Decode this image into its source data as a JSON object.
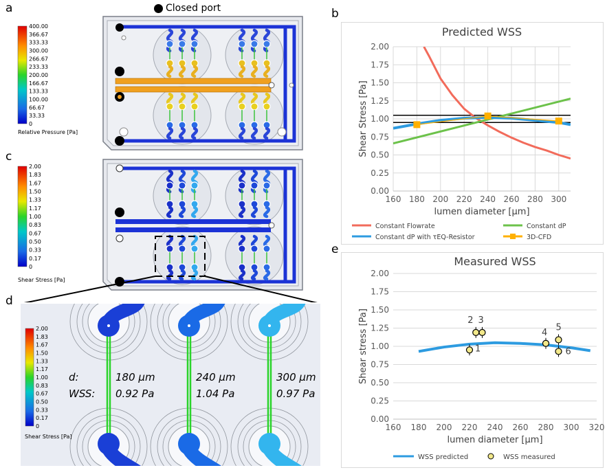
{
  "panels": {
    "a": {
      "letter": "a",
      "legend_label": "Closed port",
      "colorbar": {
        "title": "Relative Pressure [Pa]",
        "ticks": [
          "400.00",
          "366.67",
          "333.33",
          "300.00",
          "266.67",
          "233.33",
          "200.00",
          "166.67",
          "133.33",
          "100.00",
          "66.67",
          "33.33",
          "0"
        ]
      }
    },
    "c": {
      "letter": "c",
      "colorbar": {
        "title": "Shear Stress [Pa]",
        "ticks": [
          "2.00",
          "1.83",
          "1.67",
          "1.50",
          "1.33",
          "1.17",
          "1.00",
          "0.83",
          "0.67",
          "0.50",
          "0.33",
          "0.17",
          "0"
        ]
      }
    },
    "d": {
      "letter": "d",
      "colorbar": {
        "title": "Shear Stress [Pa]",
        "ticks": [
          "2.00",
          "1.83",
          "1.67",
          "1.50",
          "1.33",
          "1.17",
          "1.00",
          "0.83",
          "0.67",
          "0.50",
          "0.33",
          "0.17",
          "0"
        ]
      },
      "row_labels": [
        "d:",
        "WSS:"
      ],
      "columns": [
        {
          "d": "180 µm",
          "wss": "0.92 Pa",
          "color": "#1a3fd6"
        },
        {
          "d": "240 µm",
          "wss": "1.04 Pa",
          "color": "#1a6ae6"
        },
        {
          "d": "300 µm",
          "wss": "0.97 Pa",
          "color": "#33b5ee"
        }
      ]
    },
    "b": {
      "letter": "b"
    },
    "e": {
      "letter": "e"
    }
  },
  "colors": {
    "flowrate": "#f26b5b",
    "dp": "#6cc24a",
    "dp_resistor": "#2d9be0",
    "cfd": "#ffb000",
    "measured_fill": "#f2e88a"
  },
  "chart_data": [
    {
      "id": "b",
      "type": "line",
      "title": "Predicted WSS",
      "xlabel": "lumen diameter [µm]",
      "ylabel": "Shear Stress [Pa]",
      "xlim": [
        160,
        310
      ],
      "ylim": [
        0,
        2.0
      ],
      "xticks": [
        160,
        180,
        200,
        220,
        240,
        260,
        280,
        300
      ],
      "yticks": [
        "0.00",
        "0.25",
        "0.50",
        "0.75",
        "1.00",
        "1.25",
        "1.50",
        "1.75",
        "2.00"
      ],
      "legend_position": "bottom",
      "hlines": [
        1.05,
        0.95
      ],
      "series": [
        {
          "name": "Constant Flowrate",
          "x": [
            186,
            190,
            200,
            210,
            220,
            230,
            240,
            250,
            260,
            270,
            280,
            290,
            300,
            310
          ],
          "y": [
            2.0,
            1.88,
            1.56,
            1.33,
            1.14,
            1.01,
            0.91,
            0.82,
            0.74,
            0.67,
            0.61,
            0.56,
            0.5,
            0.45
          ]
        },
        {
          "name": "Constant dP",
          "x": [
            160,
            310
          ],
          "y": [
            0.66,
            1.28
          ]
        },
        {
          "name": "Constant dP with τEQ-Resistor",
          "x": [
            160,
            180,
            200,
            220,
            240,
            260,
            280,
            300,
            310
          ],
          "y": [
            0.87,
            0.93,
            0.98,
            1.01,
            1.02,
            1.01,
            0.98,
            0.95,
            0.92
          ]
        },
        {
          "name": "3D-CFD",
          "x": [
            180,
            240,
            300
          ],
          "y": [
            0.92,
            1.04,
            0.97
          ]
        }
      ]
    },
    {
      "id": "e",
      "type": "scatter",
      "title": "Measured WSS",
      "xlabel": "lumen diameter [µm]",
      "ylabel": "Shear stress [Pa]",
      "xlim": [
        160,
        320
      ],
      "ylim": [
        0,
        2.0
      ],
      "xticks": [
        160,
        180,
        200,
        220,
        240,
        260,
        280,
        300,
        320
      ],
      "yticks": [
        "0.00",
        "0.25",
        "0.50",
        "0.75",
        "1.00",
        "1.25",
        "1.50",
        "1.75",
        "2.00"
      ],
      "legend_position": "bottom",
      "series": [
        {
          "name": "WSS predicted",
          "x": [
            180,
            200,
            220,
            240,
            260,
            280,
            300,
            315
          ],
          "y": [
            0.93,
            0.99,
            1.03,
            1.05,
            1.04,
            1.02,
            0.98,
            0.94
          ]
        },
        {
          "name": "WSS measured",
          "points": [
            {
              "x": 220,
              "y": 0.95,
              "label": "1"
            },
            {
              "x": 225,
              "y": 1.19,
              "label": "2"
            },
            {
              "x": 230,
              "y": 1.19,
              "label": "3"
            },
            {
              "x": 280,
              "y": 1.04,
              "label": "4"
            },
            {
              "x": 290,
              "y": 1.09,
              "label": "5"
            },
            {
              "x": 290,
              "y": 0.93,
              "label": "6"
            }
          ]
        }
      ]
    }
  ]
}
